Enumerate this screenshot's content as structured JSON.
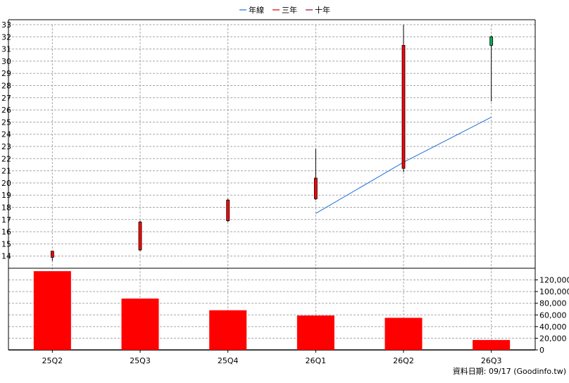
{
  "legend": [
    {
      "label": "年線",
      "color": "#1e6fd9"
    },
    {
      "label": "三年",
      "color": "#e00000"
    },
    {
      "label": "十年",
      "color": "#a0004a"
    }
  ],
  "footer": "資料日期: 09/17  (Goodinfo.tw)",
  "chart_data": [
    {
      "type": "candlestick",
      "categories": [
        "25Q2",
        "25Q3",
        "25Q4",
        "26Q1",
        "26Q2",
        "26Q3"
      ],
      "ylim": [
        13,
        33
      ],
      "y_ticks": [
        14,
        15,
        16,
        17,
        18,
        19,
        20,
        21,
        22,
        23,
        24,
        25,
        26,
        27,
        28,
        29,
        30,
        31,
        32,
        33
      ],
      "candles": [
        {
          "open": 13.9,
          "close": 14.4,
          "high": 14.4,
          "low": 13.6,
          "color": "#ff0000"
        },
        {
          "open": 14.5,
          "close": 16.8,
          "high": 16.9,
          "low": 14.4,
          "color": "#ff0000"
        },
        {
          "open": 16.9,
          "close": 18.6,
          "high": 18.7,
          "low": 16.8,
          "color": "#ff0000"
        },
        {
          "open": 18.7,
          "close": 20.4,
          "high": 22.8,
          "low": 18.6,
          "color": "#ff0000"
        },
        {
          "open": 21.2,
          "close": 31.3,
          "high": 33.0,
          "low": 20.9,
          "color": "#ff0000"
        },
        {
          "open": 32.0,
          "close": 31.3,
          "high": 32.1,
          "low": 26.7,
          "color": "#00b050"
        }
      ],
      "series": [
        {
          "name": "年線",
          "color": "#1e6fd9",
          "values": [
            null,
            null,
            null,
            17.5,
            21.7,
            25.4
          ]
        }
      ],
      "grid": true
    },
    {
      "type": "bar",
      "categories": [
        "25Q2",
        "25Q3",
        "25Q4",
        "26Q1",
        "26Q2",
        "26Q3"
      ],
      "values": [
        135000,
        88000,
        68000,
        59000,
        55000,
        17000
      ],
      "ylim": [
        0,
        140000
      ],
      "y_ticks": [
        0,
        20000,
        40000,
        60000,
        80000,
        100000,
        120000
      ],
      "y_tick_labels": [
        "0",
        "20,000",
        "40,000",
        "60,000",
        "80,000",
        "100,000",
        "120,000"
      ],
      "color": "#ff0000",
      "grid": true
    }
  ]
}
